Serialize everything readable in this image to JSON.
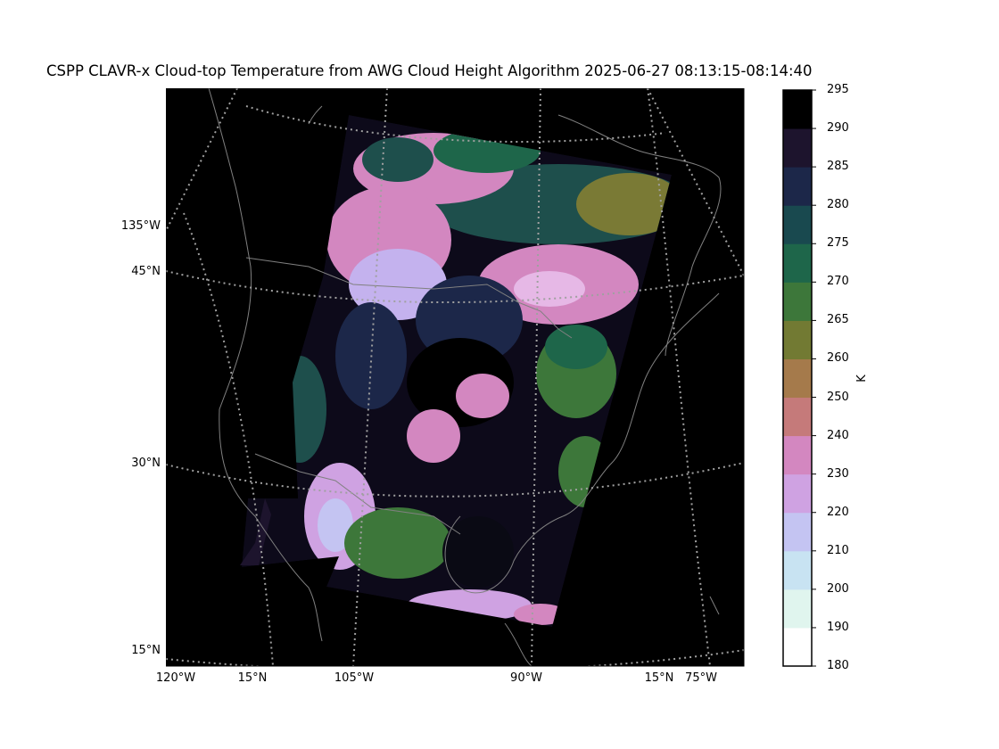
{
  "chart_data": {
    "type": "heatmap",
    "title": "CSPP CLAVR-x Cloud-top Temperature from AWG Cloud Height Algorithm 2025-06-27 08:13:15-08:14:40",
    "lat_labels": [
      "45°N",
      "30°N",
      "15°N"
    ],
    "lon_labels_left": [
      "135°W"
    ],
    "lon_labels_bottom": [
      "120°W",
      "15°N",
      "105°W",
      "90°W",
      "15°N",
      "75°W"
    ],
    "colorbar": {
      "label": "K",
      "ticks": [
        180,
        190,
        200,
        210,
        220,
        230,
        240,
        250,
        260,
        265,
        270,
        275,
        280,
        285,
        290,
        295
      ],
      "colors": [
        "#ffffff",
        "#e0f5ee",
        "#c8e3f2",
        "#c4c4f2",
        "#cfa2e2",
        "#d387c0",
        "#c57a7a",
        "#a57a4b",
        "#727a33",
        "#3d773a",
        "#1e664a",
        "#19494f",
        "#1c2749",
        "#1d142d",
        "#000000"
      ]
    },
    "map_background": "#000000",
    "coastline_color": "#808080",
    "gridline_color": "#a0a0a0"
  }
}
